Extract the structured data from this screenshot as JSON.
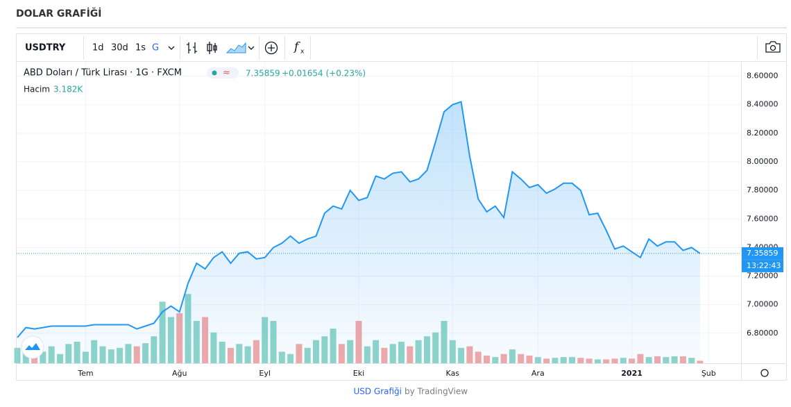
{
  "page": {
    "title": "DOLAR GRAFİĞİ",
    "footer_link": "USD Grafiği",
    "footer_by": "by TradingView"
  },
  "toolbar": {
    "symbol": "USDTRY",
    "intervals": [
      "1d",
      "30d",
      "1s",
      "G"
    ]
  },
  "chart_data": {
    "type": "line",
    "change": "+0.01654 (+0.23%)",
    "countdown": "13:22:43",
    "categories": [
      null,
      null,
      null,
      null,
      null,
      null,
      null,
      null,
      "Tem",
      null,
      null,
      null,
      null,
      null,
      null,
      null,
      null,
      null,
      null,
      "Ağu",
      null,
      null,
      null,
      null,
      null,
      null,
      null,
      null,
      null,
      "Eyl",
      null,
      null,
      null,
      null,
      null,
      null,
      null,
      null,
      null,
      null,
      "Eki",
      null,
      null,
      null,
      null,
      null,
      null,
      null,
      null,
      null,
      null,
      "Kas",
      null,
      null,
      null,
      null,
      null,
      null,
      null,
      null,
      null,
      "Ara",
      null,
      null,
      null,
      null,
      null,
      null,
      null,
      null,
      null,
      null,
      "2021",
      null,
      null,
      null,
      null,
      null,
      null,
      null,
      null,
      "Şub"
    ],
    "series": [
      {
        "name": "ABD Doları / Türk Lirası · 1G · FXCM",
        "color": "#2196f3",
        "values": [
          6.77,
          6.84,
          6.83,
          6.84,
          6.85,
          6.85,
          6.85,
          6.85,
          6.85,
          6.86,
          6.86,
          6.86,
          6.86,
          6.86,
          6.83,
          6.85,
          6.87,
          6.95,
          6.99,
          6.95,
          7.15,
          7.29,
          7.25,
          7.33,
          7.37,
          7.29,
          7.36,
          7.37,
          7.32,
          7.33,
          7.4,
          7.43,
          7.48,
          7.43,
          7.46,
          7.48,
          7.64,
          7.69,
          7.67,
          7.8,
          7.73,
          7.75,
          7.9,
          7.88,
          7.92,
          7.93,
          7.86,
          7.88,
          7.94,
          8.14,
          8.35,
          8.4,
          8.42,
          8.04,
          7.74,
          7.65,
          7.69,
          7.61,
          7.93,
          7.88,
          7.82,
          7.84,
          7.78,
          7.81,
          7.85,
          7.85,
          7.8,
          7.63,
          7.64,
          7.52,
          7.39,
          7.41,
          7.37,
          7.33,
          7.46,
          7.41,
          7.44,
          7.44,
          7.38,
          7.4,
          7.35859,
          null
        ]
      },
      {
        "name": "Hacim",
        "axis": "y2",
        "up_color": "#8fd5c9",
        "down_color": "#f3a9a7",
        "values": [
          20,
          25,
          18,
          15,
          22,
          12,
          25,
          28,
          15,
          30,
          22,
          18,
          20,
          25,
          22,
          26,
          35,
          80,
          60,
          65,
          90,
          55,
          60,
          40,
          28,
          20,
          25,
          22,
          30,
          60,
          55,
          15,
          12,
          25,
          20,
          30,
          35,
          45,
          25,
          30,
          55,
          22,
          30,
          20,
          25,
          28,
          22,
          30,
          35,
          40,
          55,
          30,
          20,
          22,
          15,
          10,
          8,
          12,
          18,
          12,
          10,
          8,
          6,
          7,
          8,
          8,
          7,
          6,
          5,
          5,
          6,
          7,
          6,
          12,
          8,
          9,
          8,
          9,
          9,
          7,
          3.182,
          null
        ],
        "value_labels": [
          null,
          null,
          null,
          null,
          null,
          null,
          null,
          null,
          null,
          null,
          null,
          null,
          null,
          null,
          null,
          null,
          null,
          null,
          null,
          null,
          null,
          null,
          null,
          null,
          null,
          null,
          null,
          null,
          null,
          null,
          null,
          null,
          null,
          null,
          null,
          null,
          null,
          null,
          null,
          null,
          null,
          null,
          null,
          null,
          null,
          null,
          null,
          null,
          null,
          null,
          null,
          null,
          null,
          null,
          null,
          null,
          null,
          null,
          null,
          null,
          null,
          null,
          null,
          null,
          null,
          null,
          null,
          null,
          null,
          null,
          null,
          null,
          null,
          null,
          null,
          null,
          null,
          null,
          null,
          null,
          "3.182K",
          null
        ]
      }
    ],
    "ylim": [
      6.59,
      8.7
    ],
    "yticks": [
      {
        "value": 6.8,
        "label": "6.80000"
      },
      {
        "value": 7.0,
        "label": "7.00000"
      },
      {
        "value": 7.2,
        "label": "7.20000"
      },
      {
        "value": 7.4,
        "label": "7.40000"
      },
      {
        "value": 7.6,
        "label": "7.60000"
      },
      {
        "value": 7.8,
        "label": "7.80000"
      },
      {
        "value": 8.0,
        "label": "8.00000"
      },
      {
        "value": 8.2,
        "label": "8.20000"
      },
      {
        "value": 8.4,
        "label": "8.40000"
      },
      {
        "value": 8.6,
        "label": "8.60000"
      }
    ],
    "y2lim": [
      0,
      120
    ],
    "grid": true
  }
}
